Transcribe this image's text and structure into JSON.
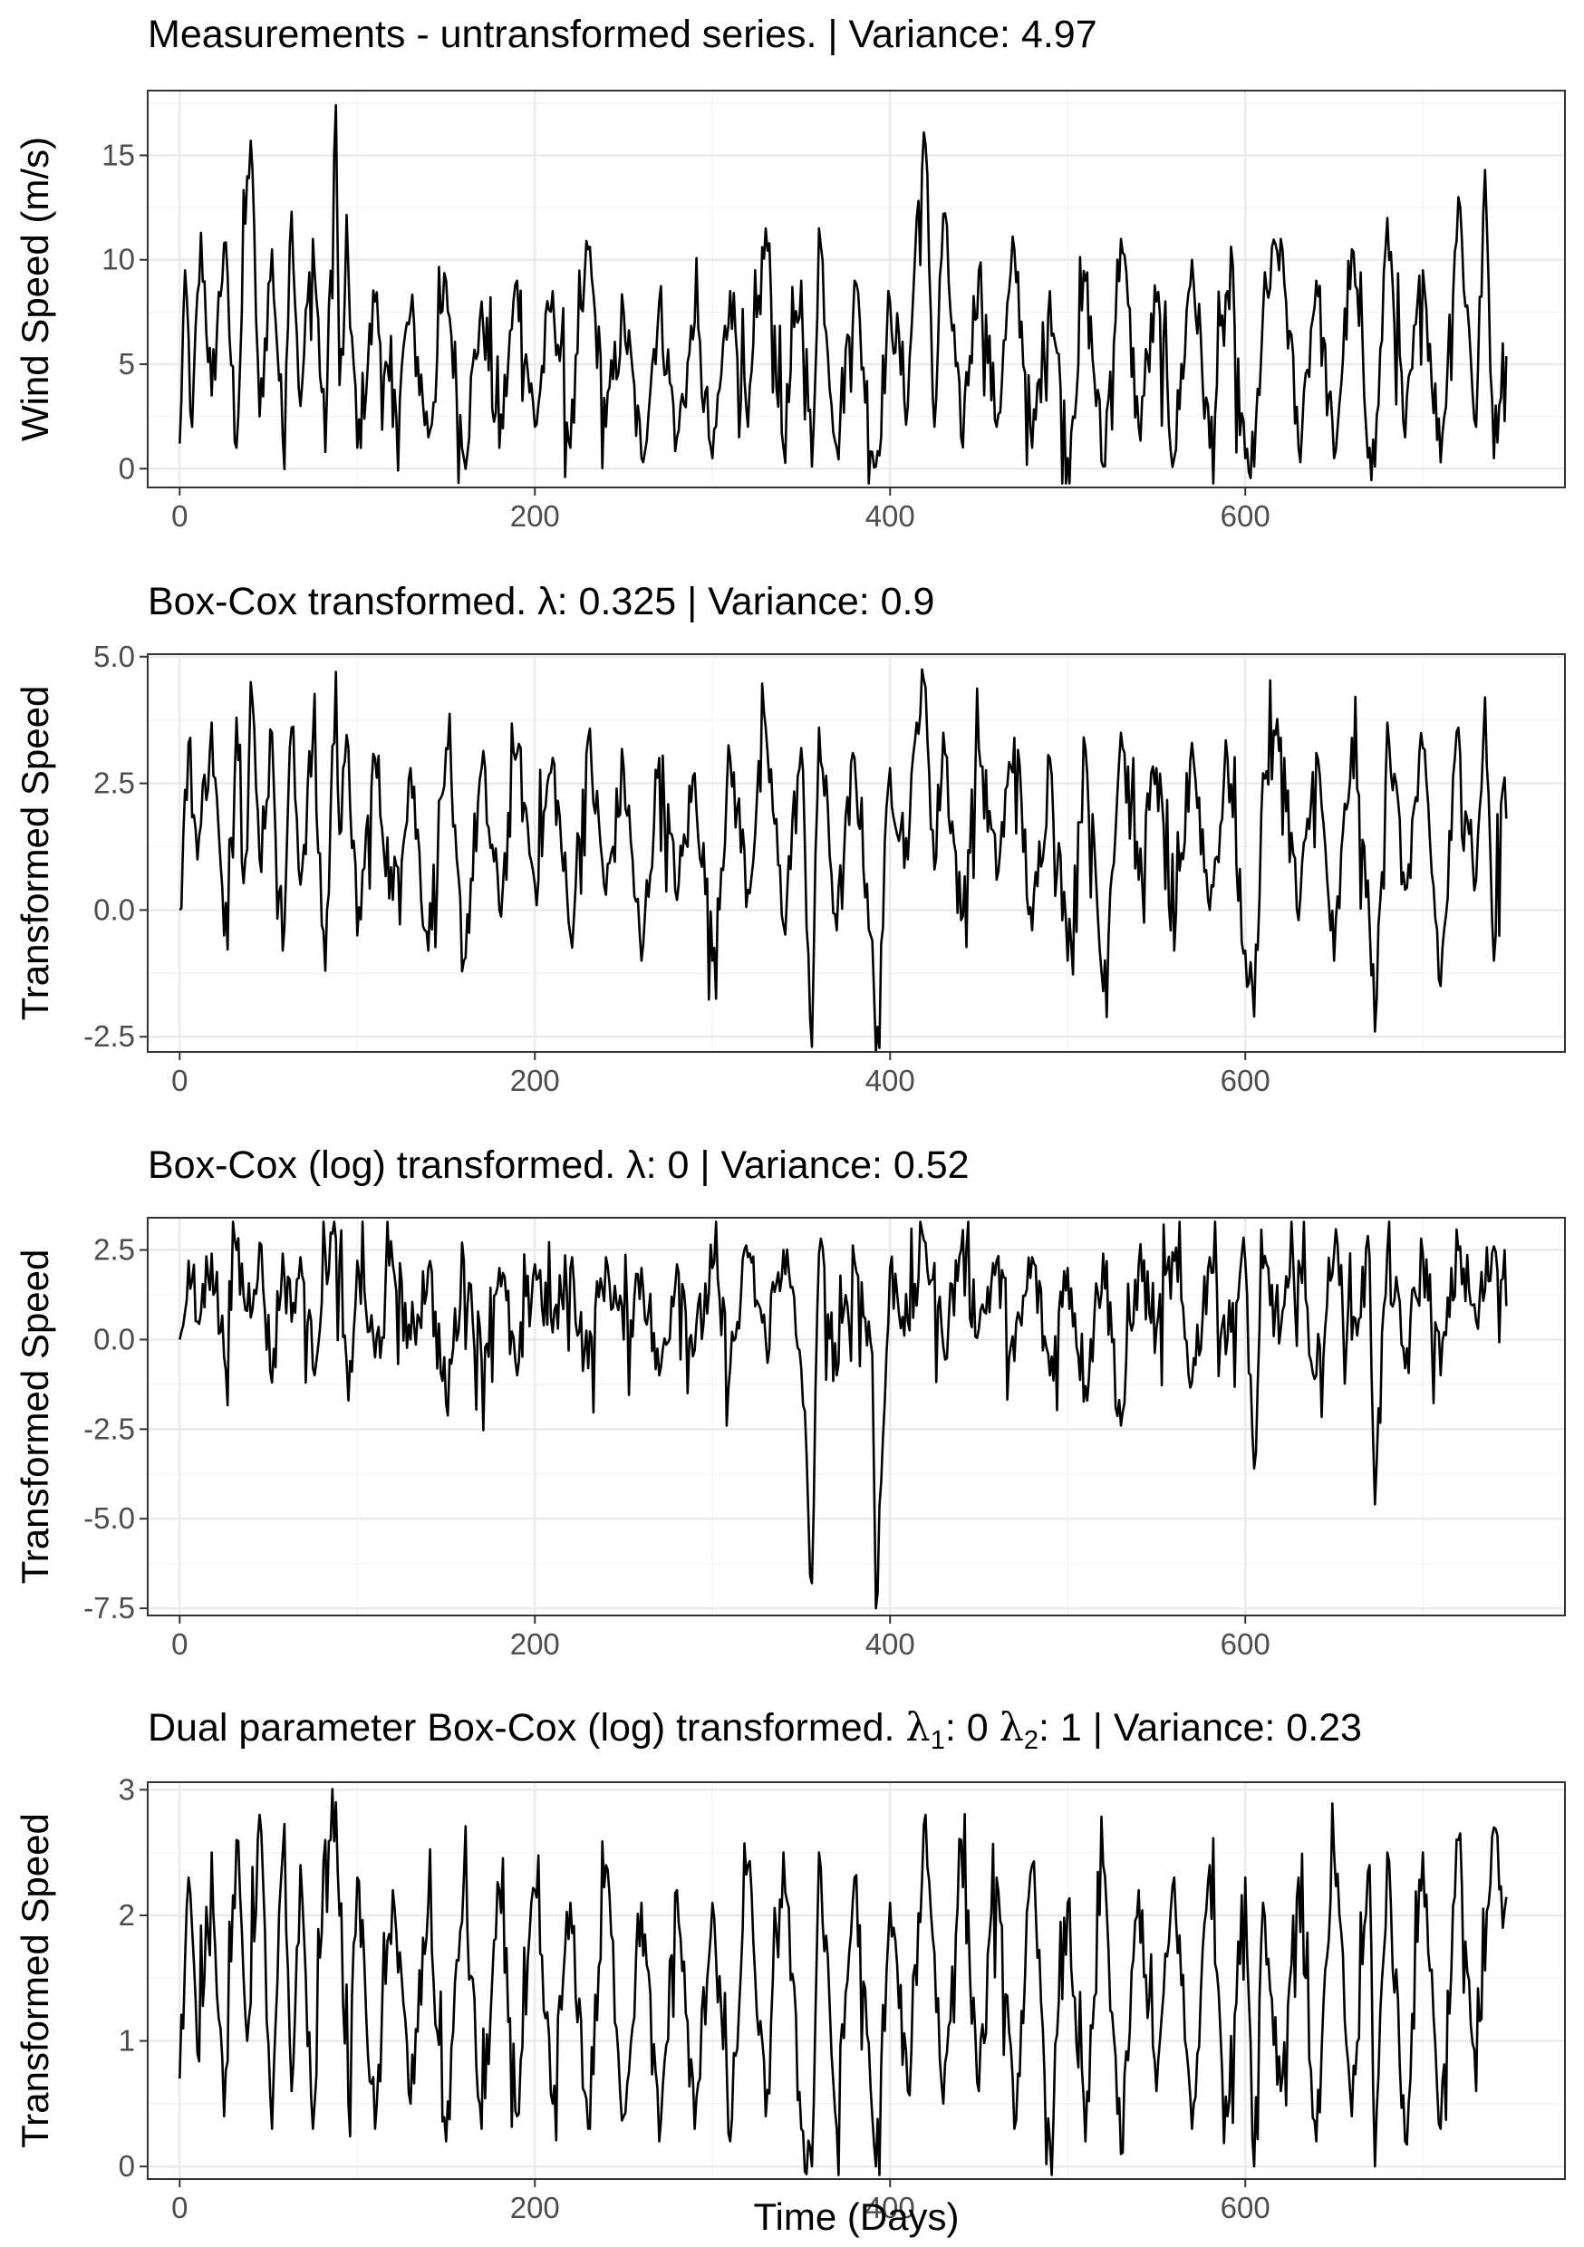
{
  "chart_data": [
    {
      "type": "line",
      "title": "Measurements - untransformed series. | Variance: 4.97",
      "ylabel": "Wind Speed (m/s)",
      "xlabel": "",
      "xlim": [
        -18,
        780
      ],
      "ylim": [
        -0.9,
        18.1
      ],
      "x_ticks": [
        0,
        200,
        400,
        600
      ],
      "y_ticks": [
        0,
        5,
        10,
        15
      ],
      "grid": true,
      "n_points": 748,
      "series": [
        {
          "values_approx": true,
          "x": [
            0,
            3,
            7,
            12,
            18,
            25,
            32,
            38,
            40,
            45,
            52,
            58,
            63,
            68,
            75,
            82,
            88,
            90,
            95,
            100,
            110,
            120,
            130,
            140,
            150,
            160,
            170,
            180,
            190,
            200,
            210,
            220,
            230,
            240,
            250,
            260,
            270,
            280,
            290,
            300,
            310,
            320,
            330,
            340,
            350,
            356,
            360,
            370,
            380,
            390,
            392,
            400,
            410,
            415,
            420,
            425,
            430,
            440,
            450,
            460,
            470,
            480,
            490,
            500,
            510,
            520,
            530,
            540,
            550,
            560,
            570,
            580,
            590,
            600,
            605,
            610,
            620,
            630,
            640,
            650,
            660,
            670,
            673,
            680,
            690,
            700,
            710,
            720,
            730,
            735,
            740,
            745
          ],
          "y": [
            1.2,
            9.5,
            2.0,
            11.3,
            3.5,
            10.8,
            1.0,
            14.0,
            15.7,
            2.5,
            10.5,
            1.5,
            12.3,
            3.0,
            11.0,
            0.8,
            17.4,
            4.0,
            9.5,
            1.0,
            8.0,
            2.0,
            7.5,
            1.5,
            9.0,
            0.5,
            8.0,
            1.0,
            9.0,
            2.0,
            8.5,
            1.0,
            10.5,
            2.0,
            7.5,
            0.5,
            8.0,
            1.5,
            7.0,
            0.5,
            8.5,
            2.0,
            11.5,
            1.0,
            9.0,
            0.1,
            11.5,
            1.0,
            9.0,
            0.8,
            0.1,
            8.0,
            3.0,
            12.0,
            15.5,
            2.0,
            12.2,
            1.5,
            9.5,
            2.0,
            10.5,
            1.0,
            8.5,
            0.5,
            9.0,
            0.1,
            11.0,
            2.0,
            8.0,
            0.5,
            10.0,
            1.0,
            8.5,
            0.5,
            0.1,
            7.5,
            11.0,
            1.0,
            9.0,
            0.5,
            10.5,
            1.0,
            0.1,
            12.0,
            1.5,
            9.5,
            0.3,
            13.0,
            2.0,
            14.3,
            0.5,
            6.0
          ]
        }
      ]
    },
    {
      "type": "line",
      "title": "Box-Cox transformed. λ: 0.325 | Variance: 0.9",
      "ylabel": "Transformed Speed",
      "xlabel": "",
      "xlim": [
        -18,
        780
      ],
      "ylim": [
        -2.8,
        5.05
      ],
      "x_ticks": [
        0,
        200,
        400,
        600
      ],
      "y_ticks": [
        -2.5,
        0.0,
        2.5,
        5.0
      ],
      "y_tick_labels": [
        "-2.5",
        "0.0",
        "2.5",
        "5.0"
      ],
      "grid": true,
      "n_points": 748,
      "series": [
        {
          "values_approx": true,
          "x": [
            0,
            5,
            10,
            18,
            25,
            32,
            38,
            40,
            45,
            52,
            58,
            63,
            68,
            75,
            82,
            88,
            90,
            95,
            100,
            110,
            120,
            130,
            140,
            150,
            160,
            170,
            180,
            190,
            200,
            210,
            220,
            230,
            240,
            250,
            260,
            270,
            280,
            290,
            300,
            310,
            320,
            330,
            340,
            350,
            356,
            360,
            370,
            380,
            390,
            392,
            400,
            410,
            415,
            420,
            425,
            430,
            440,
            450,
            460,
            470,
            480,
            490,
            500,
            510,
            520,
            530,
            540,
            550,
            560,
            570,
            580,
            590,
            600,
            605,
            610,
            620,
            630,
            640,
            650,
            660,
            670,
            673,
            680,
            690,
            700,
            710,
            720,
            730,
            735,
            740,
            745
          ],
          "y": [
            0.0,
            3.3,
            1.0,
            3.7,
            -0.5,
            3.8,
            1.2,
            4.5,
            1.0,
            3.5,
            -0.8,
            3.6,
            0.5,
            3.4,
            -1.2,
            4.7,
            1.5,
            3.2,
            -0.5,
            3.0,
            0.2,
            2.8,
            -0.8,
            3.2,
            -1.0,
            2.8,
            0.0,
            3.1,
            0.5,
            3.0,
            -0.5,
            3.4,
            0.3,
            2.8,
            -1.0,
            3.0,
            0.2,
            2.7,
            -1.0,
            3.0,
            0.4,
            3.6,
            -0.3,
            3.2,
            -2.7,
            3.6,
            -0.4,
            3.0,
            -0.6,
            -2.8,
            2.8,
            1.0,
            3.7,
            4.4,
            0.8,
            3.5,
            -0.2,
            3.2,
            0.6,
            3.4,
            -0.4,
            3.0,
            -1.0,
            3.2,
            -1.6,
            3.5,
            0.6,
            2.8,
            -0.8,
            3.3,
            0.0,
            3.0,
            -0.8,
            -2.1,
            2.7,
            3.4,
            -0.2,
            3.1,
            -1.0,
            3.4,
            -0.3,
            -2.4,
            3.7,
            0.4,
            3.2,
            -1.5,
            3.6,
            0.6,
            4.2,
            -1.0,
            2.4
          ]
        }
      ]
    },
    {
      "type": "line",
      "title": "Box-Cox (log) transformed. λ: 0 | Variance: 0.52",
      "ylabel": "Transformed Speed",
      "xlabel": "",
      "xlim": [
        -18,
        780
      ],
      "ylim": [
        -7.7,
        3.4
      ],
      "x_ticks": [
        0,
        200,
        400,
        600
      ],
      "y_ticks": [
        -7.5,
        -5.0,
        -2.5,
        0.0,
        2.5
      ],
      "y_tick_labels": [
        "-7.5",
        "-5.0",
        "-2.5",
        "0.0",
        "2.5"
      ],
      "grid": true,
      "n_points": 748,
      "series": [
        {
          "values_approx": true,
          "x": [
            0,
            5,
            10,
            18,
            25,
            32,
            38,
            45,
            52,
            58,
            63,
            68,
            75,
            82,
            88,
            95,
            100,
            110,
            120,
            130,
            140,
            150,
            160,
            170,
            180,
            190,
            200,
            210,
            220,
            230,
            240,
            250,
            260,
            270,
            280,
            290,
            300,
            310,
            320,
            330,
            340,
            350,
            356,
            360,
            370,
            380,
            390,
            392,
            400,
            410,
            420,
            430,
            440,
            450,
            460,
            470,
            480,
            490,
            500,
            510,
            520,
            530,
            540,
            550,
            560,
            570,
            580,
            590,
            600,
            605,
            610,
            620,
            630,
            640,
            650,
            660,
            670,
            673,
            680,
            690,
            700,
            710,
            720,
            730,
            740,
            745
          ],
          "y": [
            0.0,
            2.2,
            0.5,
            2.4,
            -0.5,
            2.5,
            0.8,
            2.7,
            -1.2,
            2.4,
            0.5,
            2.3,
            -0.8,
            2.4,
            2.8,
            -1.7,
            2.2,
            -0.5,
            2.1,
            0.0,
            2.0,
            -1.8,
            2.2,
            -0.6,
            2.0,
            -1.0,
            2.1,
            0.2,
            2.0,
            -0.8,
            2.3,
            0.0,
            2.0,
            -1.0,
            2.1,
            -0.3,
            2.0,
            -0.8,
            2.3,
            0.0,
            2.5,
            -0.8,
            -6.8,
            2.4,
            -1.0,
            2.2,
            -0.4,
            -7.5,
            2.0,
            0.5,
            2.7,
            -0.2,
            2.5,
            0.3,
            2.2,
            -0.6,
            2.3,
            -1.0,
            2.0,
            -1.3,
            2.4,
            -2.4,
            2.1,
            0.3,
            2.2,
            -1.2,
            2.3,
            0.0,
            2.2,
            -3.6,
            2.0,
            0.3,
            2.2,
            -1.0,
            2.4,
            0.0,
            2.3,
            -4.6,
            2.5,
            -0.8,
            2.4,
            -1.0,
            2.5,
            0.5,
            2.6,
            1.7
          ]
        }
      ]
    },
    {
      "type": "line",
      "title": "Dual parameter Box-Cox (log) transformed. λ1: 0 λ2: 1 | Variance: 0.23",
      "title_parts": [
        "Dual parameter Box-Cox (log) transformed. ",
        "λ",
        "1",
        ": 0 ",
        "λ",
        "2",
        ": 1 | Variance: 0.23"
      ],
      "ylabel": "Transformed Speed",
      "xlabel": "Time (Days)",
      "xlim": [
        -18,
        780
      ],
      "ylim": [
        -0.1,
        3.06
      ],
      "x_ticks": [
        0,
        200,
        400,
        600
      ],
      "y_ticks": [
        0,
        1,
        2,
        3
      ],
      "grid": true,
      "n_points": 748,
      "series": [
        {
          "values_approx": true,
          "x": [
            0,
            5,
            10,
            18,
            25,
            32,
            38,
            45,
            52,
            58,
            63,
            68,
            75,
            82,
            88,
            95,
            100,
            110,
            120,
            130,
            140,
            150,
            160,
            170,
            180,
            190,
            200,
            210,
            220,
            230,
            240,
            250,
            260,
            270,
            280,
            290,
            300,
            310,
            320,
            330,
            340,
            350,
            356,
            360,
            370,
            380,
            390,
            392,
            400,
            410,
            420,
            430,
            440,
            450,
            460,
            470,
            480,
            490,
            500,
            510,
            520,
            530,
            540,
            550,
            560,
            570,
            580,
            590,
            600,
            605,
            610,
            620,
            630,
            640,
            650,
            660,
            670,
            673,
            680,
            690,
            700,
            710,
            720,
            730,
            740,
            745
          ],
          "y": [
            0.7,
            2.3,
            0.9,
            2.5,
            0.4,
            2.6,
            1.0,
            2.8,
            0.3,
            2.5,
            0.6,
            2.4,
            0.3,
            2.6,
            2.9,
            0.5,
            2.3,
            0.3,
            2.2,
            0.5,
            2.1,
            0.2,
            2.3,
            0.3,
            2.2,
            0.4,
            2.2,
            0.5,
            2.1,
            0.3,
            2.4,
            0.4,
            2.1,
            0.2,
            2.2,
            0.3,
            2.1,
            0.2,
            2.4,
            0.4,
            2.5,
            0.3,
            0.0,
            2.5,
            0.3,
            2.3,
            0.4,
            0.0,
            2.1,
            0.6,
            2.8,
            0.5,
            2.6,
            0.6,
            2.3,
            0.3,
            2.4,
            0.2,
            2.1,
            0.2,
            2.4,
            0.1,
            2.2,
            0.6,
            2.3,
            0.3,
            2.4,
            0.4,
            2.3,
            0.0,
            2.1,
            0.6,
            2.3,
            0.2,
            2.5,
            0.4,
            2.4,
            0.0,
            2.5,
            0.2,
            2.5,
            0.3,
            2.6,
            0.6,
            2.7,
            1.9
          ]
        }
      ]
    }
  ]
}
